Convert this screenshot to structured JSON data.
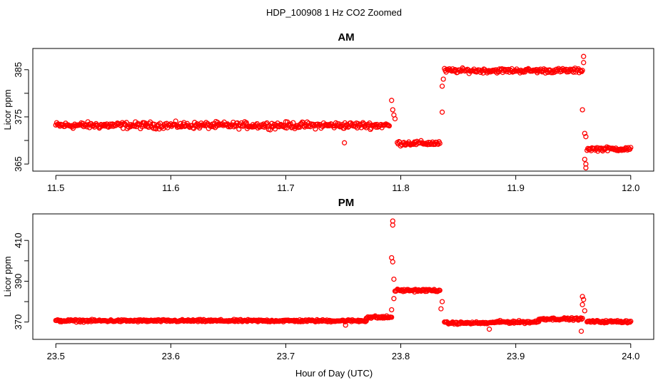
{
  "figure": {
    "title": "HDP_100908  1 Hz CO2 Zoomed",
    "xlabel": "Hour of Day (UTC)"
  },
  "chart_data": [
    {
      "type": "scatter",
      "title": "AM",
      "ylabel": "Licor ppm",
      "xlabel": "",
      "xlim": [
        11.48,
        12.02
      ],
      "ylim": [
        363.5,
        389.5
      ],
      "xticks": [
        11.5,
        11.6,
        11.7,
        11.8,
        11.9,
        12.0
      ],
      "xtick_labels": [
        "11.5",
        "11.6",
        "11.7",
        "11.8",
        "11.9",
        "12.0"
      ],
      "yticks": [
        365,
        375,
        385
      ],
      "ytick_labels": [
        "365",
        "375",
        "385"
      ],
      "marker": "open-circle",
      "color": "#ff0000",
      "grid": false,
      "series": [
        {
          "segments": [
            {
              "x_range": [
                11.5,
                11.79
              ],
              "level": 373.2,
              "spread": 1.0
            },
            {
              "x_range": [
                11.797,
                11.834
              ],
              "level": 369.4,
              "spread": 0.7
            },
            {
              "x_range": [
                11.838,
                11.958
              ],
              "level": 384.8,
              "spread": 0.7
            },
            {
              "x_range": [
                11.962,
                12.0
              ],
              "level": 368.2,
              "spread": 0.6
            }
          ],
          "points": [
            [
              11.792,
              378.5
            ],
            [
              11.793,
              376.5
            ],
            [
              11.794,
              375.4
            ],
            [
              11.795,
              374.6
            ],
            [
              11.751,
              369.5
            ],
            [
              11.836,
              376.0
            ],
            [
              11.836,
              381.5
            ],
            [
              11.837,
              383.0
            ],
            [
              11.959,
              387.8
            ],
            [
              11.959,
              386.5
            ],
            [
              11.958,
              376.5
            ],
            [
              11.96,
              371.5
            ],
            [
              11.961,
              370.8
            ],
            [
              11.96,
              366.0
            ],
            [
              11.961,
              365.0
            ],
            [
              11.961,
              364.2
            ]
          ]
        }
      ]
    },
    {
      "type": "scatter",
      "title": "PM",
      "ylabel": "Licor ppm",
      "xlabel": "Hour of Day (UTC)",
      "xlim": [
        23.48,
        24.02
      ],
      "ylim": [
        361.5,
        423
      ],
      "xticks": [
        23.5,
        23.6,
        23.7,
        23.8,
        23.9,
        24.0
      ],
      "xtick_labels": [
        "23.5",
        "23.6",
        "23.7",
        "23.8",
        "23.9",
        "24.0"
      ],
      "yticks": [
        370,
        390,
        410
      ],
      "ytick_labels": [
        "370",
        "390",
        "410"
      ],
      "marker": "open-circle",
      "color": "#ff0000",
      "grid": false,
      "series": [
        {
          "segments": [
            {
              "x_range": [
                23.5,
                23.77
              ],
              "level": 370.6,
              "spread": 0.8
            },
            {
              "x_range": [
                23.77,
                23.792
              ],
              "level": 372.3,
              "spread": 1.0
            },
            {
              "x_range": [
                23.795,
                23.834
              ],
              "level": 385.5,
              "spread": 0.9
            },
            {
              "x_range": [
                23.838,
                23.88
              ],
              "level": 369.5,
              "spread": 0.8
            },
            {
              "x_range": [
                23.88,
                23.92
              ],
              "level": 370.0,
              "spread": 0.9
            },
            {
              "x_range": [
                23.92,
                23.958
              ],
              "level": 371.5,
              "spread": 0.8
            },
            {
              "x_range": [
                23.962,
                24.0
              ],
              "level": 370.2,
              "spread": 0.8
            }
          ],
          "points": [
            [
              23.793,
              419.5
            ],
            [
              23.793,
              417.5
            ],
            [
              23.792,
              401.5
            ],
            [
              23.793,
              399.5
            ],
            [
              23.794,
              391.0
            ],
            [
              23.794,
              381.5
            ],
            [
              23.792,
              376.0
            ],
            [
              23.752,
              368.5
            ],
            [
              23.836,
              380.0
            ],
            [
              23.835,
              376.5
            ],
            [
              23.877,
              366.5
            ],
            [
              23.957,
              365.5
            ],
            [
              23.958,
              382.5
            ],
            [
              23.959,
              381.0
            ],
            [
              23.958,
              378.5
            ],
            [
              23.96,
              375.5
            ]
          ]
        }
      ]
    }
  ]
}
